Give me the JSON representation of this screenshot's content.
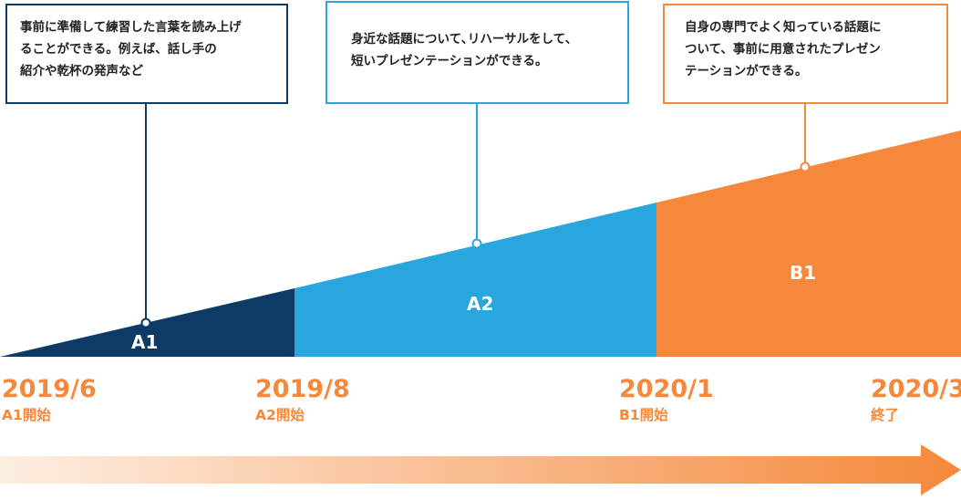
{
  "colors": {
    "a1": "#0e3a66",
    "a2": "#2aa6df",
    "b1": "#f5883a",
    "arrow_start": "#fdeee2",
    "arrow_end": "#f5883a"
  },
  "callouts": [
    {
      "text": "事前に準備して練習した言葉を読み上げ\nることができる。例えば、話し手の\n紹介や乾杯の発声など"
    },
    {
      "text": "身近な話題について､リハーサルをして､\n短いプレゼンテーションができる。"
    },
    {
      "text": "自身の専門でよく知っている話題に\nついて、事前に用意されたプレゼン\nテーションができる。"
    }
  ],
  "stages": [
    {
      "label": "A1"
    },
    {
      "label": "A2"
    },
    {
      "label": "B1"
    }
  ],
  "milestones": [
    {
      "date": "2019/6",
      "caption": "A1開始"
    },
    {
      "date": "2019/8",
      "caption": "A2開始"
    },
    {
      "date": "2020/1",
      "caption": "B1開始"
    },
    {
      "date": "2020/3",
      "caption": "終了"
    }
  ]
}
